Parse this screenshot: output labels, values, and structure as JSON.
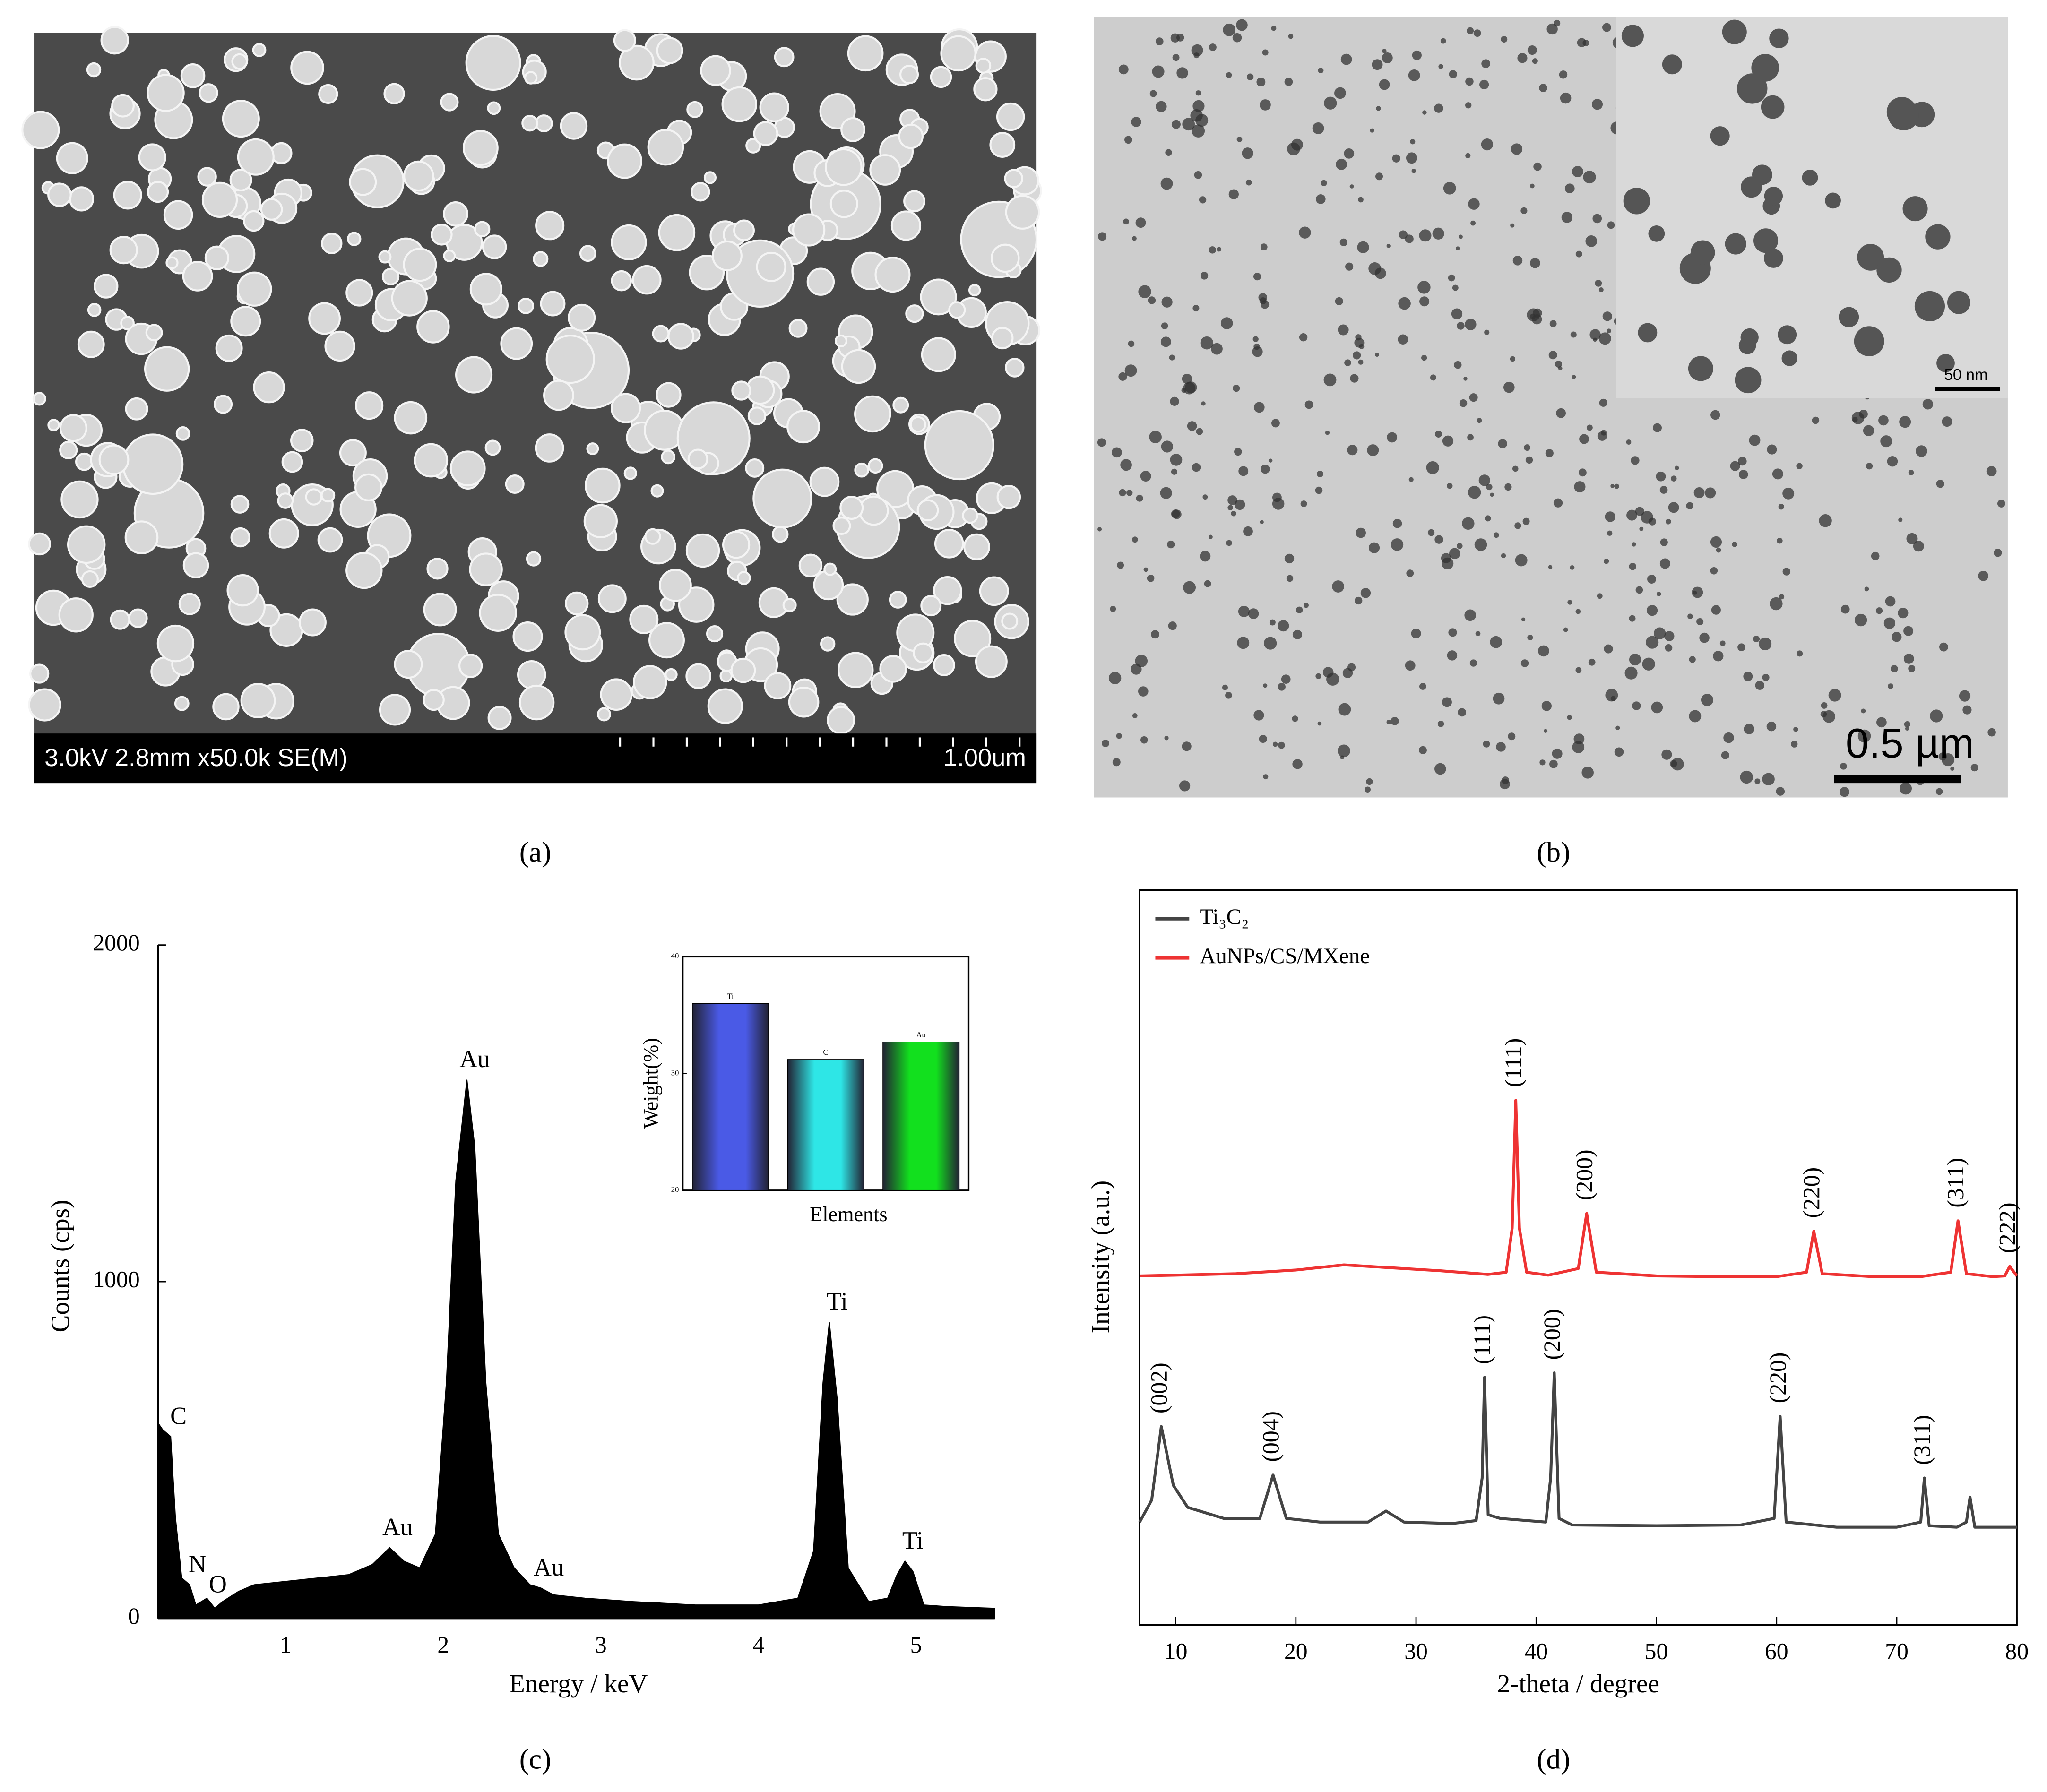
{
  "panels": [
    {
      "caption": "(a)",
      "info": "3.0kV 2.8mm x50.0k SE(M)",
      "scale": "1.00um"
    },
    {
      "caption": "(b)",
      "scale": "0.5 µm",
      "inset_scale": "50 nm"
    },
    {
      "caption": "(c)"
    },
    {
      "caption": "(d)"
    }
  ],
  "chart_data": [
    {
      "type": "area",
      "color": "#000000",
      "xlabel": "Energy / keV",
      "ylabel": "Counts (cps)",
      "x": [
        0.19,
        0.22,
        0.27,
        0.3,
        0.34,
        0.39,
        0.43,
        0.5,
        0.55,
        0.6,
        0.7,
        0.8,
        1,
        1.2,
        1.4,
        1.55,
        1.66,
        1.75,
        1.85,
        1.95,
        2.02,
        2.08,
        2.15,
        2.2,
        2.27,
        2.35,
        2.45,
        2.55,
        2.62,
        2.7,
        2.9,
        3.2,
        3.6,
        4,
        4.25,
        4.35,
        4.41,
        4.45,
        4.5,
        4.57,
        4.7,
        4.82,
        4.88,
        4.93,
        4.98,
        5.05,
        5.2,
        5.5
      ],
      "values": [
        580,
        560,
        540,
        300,
        120,
        100,
        40,
        60,
        30,
        50,
        80,
        100,
        110,
        120,
        130,
        160,
        210,
        170,
        150,
        250,
        700,
        1300,
        1600,
        1400,
        700,
        250,
        150,
        100,
        90,
        70,
        60,
        50,
        40,
        40,
        60,
        200,
        700,
        880,
        650,
        150,
        50,
        60,
        130,
        170,
        140,
        40,
        35,
        30
      ],
      "xlim": [
        0.19,
        5.5
      ],
      "ylim": [
        0,
        2000
      ],
      "xticks": [
        1,
        2,
        3,
        4,
        5
      ],
      "yticks": [
        0,
        1000,
        2000
      ],
      "grid": false,
      "annotations": [
        {
          "text": "C",
          "x": 0.27,
          "y": 540
        },
        {
          "text": "N",
          "x": 0.39,
          "y": 100
        },
        {
          "text": "O",
          "x": 0.52,
          "y": 40
        },
        {
          "text": "Au",
          "x": 1.66,
          "y": 210
        },
        {
          "text": "Au",
          "x": 2.15,
          "y": 1600
        },
        {
          "text": "Au",
          "x": 2.62,
          "y": 90
        },
        {
          "text": "Ti",
          "x": 4.45,
          "y": 880
        },
        {
          "text": "Ti",
          "x": 4.93,
          "y": 170
        }
      ]
    },
    {
      "type": "bar",
      "xlabel": "Elements",
      "ylabel": "Weight(%)",
      "categories": [
        "Ti",
        "C",
        "Au"
      ],
      "values": [
        36,
        31.2,
        32.7
      ],
      "colors": [
        "#4a5ae6",
        "#2ee6e6",
        "#12e01e"
      ],
      "ylim": [
        20,
        40
      ],
      "yticks": [
        20,
        30,
        40
      ],
      "grid": false
    },
    {
      "type": "line",
      "xlabel": "2-theta / degree",
      "ylabel": "Intensity (a.u.)",
      "legend": "upper left",
      "grid": false,
      "xlim": [
        7,
        80
      ],
      "ylim": [
        0,
        100
      ],
      "xticks": [
        10,
        20,
        30,
        40,
        50,
        60,
        70,
        80
      ],
      "series": [
        {
          "name": "Ti₃C₂",
          "color": "#444444",
          "x": [
            7,
            8,
            8.8,
            9.8,
            11,
            14,
            17,
            18.1,
            19.2,
            22,
            26,
            27.5,
            29,
            33,
            35,
            35.5,
            35.7,
            36,
            37,
            40.8,
            41.2,
            41.5,
            41.9,
            43,
            50,
            57,
            59.8,
            60.3,
            60.8,
            65,
            70,
            72,
            72.3,
            72.7,
            75,
            75.8,
            76.1,
            76.5,
            80
          ],
          "values": [
            14,
            17,
            27,
            19,
            16,
            14.5,
            14.5,
            20.4,
            14.5,
            14,
            14,
            15.5,
            14,
            13.8,
            14.2,
            20,
            33.7,
            15,
            14.5,
            14,
            20,
            34.3,
            14.5,
            13.6,
            13.5,
            13.6,
            14.5,
            28.4,
            14,
            13.3,
            13.3,
            14,
            20,
            13.5,
            13.3,
            14,
            17.4,
            13.3,
            13.3
          ],
          "annotations": [
            {
              "text": "(002)",
              "x": 8.8,
              "y": 27
            },
            {
              "text": "(004)",
              "x": 18.1,
              "y": 20.4
            },
            {
              "text": "(111)",
              "x": 35.7,
              "y": 33.7
            },
            {
              "text": "(200)",
              "x": 41.5,
              "y": 34.3
            },
            {
              "text": "(220)",
              "x": 60.3,
              "y": 28.4
            },
            {
              "text": "(311)",
              "x": 72.3,
              "y": 20
            }
          ]
        },
        {
          "name": "AuNPs/CS/MXene",
          "color": "#ee3333",
          "x": [
            7,
            10,
            15,
            20,
            24,
            28,
            32,
            36,
            37.5,
            38.0,
            38.3,
            38.6,
            39.2,
            41,
            43.5,
            44.2,
            45,
            50,
            55,
            60,
            62.5,
            63.1,
            63.8,
            68,
            72,
            74.5,
            75.1,
            75.8,
            78,
            79,
            79.4,
            80
          ],
          "values": [
            47.5,
            47.6,
            47.8,
            48.3,
            49,
            48.6,
            48.2,
            47.7,
            48,
            54,
            71.4,
            54,
            48,
            47.6,
            48.5,
            56,
            48,
            47.5,
            47.4,
            47.4,
            48,
            53.6,
            47.8,
            47.4,
            47.4,
            48,
            55,
            47.8,
            47.4,
            47.5,
            48.8,
            47.5
          ],
          "annotations": [
            {
              "text": "(111)",
              "x": 38.3,
              "y": 71.4
            },
            {
              "text": "(200)",
              "x": 44.2,
              "y": 56
            },
            {
              "text": "(220)",
              "x": 63.1,
              "y": 53.6
            },
            {
              "text": "(311)",
              "x": 75.1,
              "y": 55
            },
            {
              "text": "(222)",
              "x": 79.4,
              "y": 48.8
            }
          ]
        }
      ]
    }
  ]
}
